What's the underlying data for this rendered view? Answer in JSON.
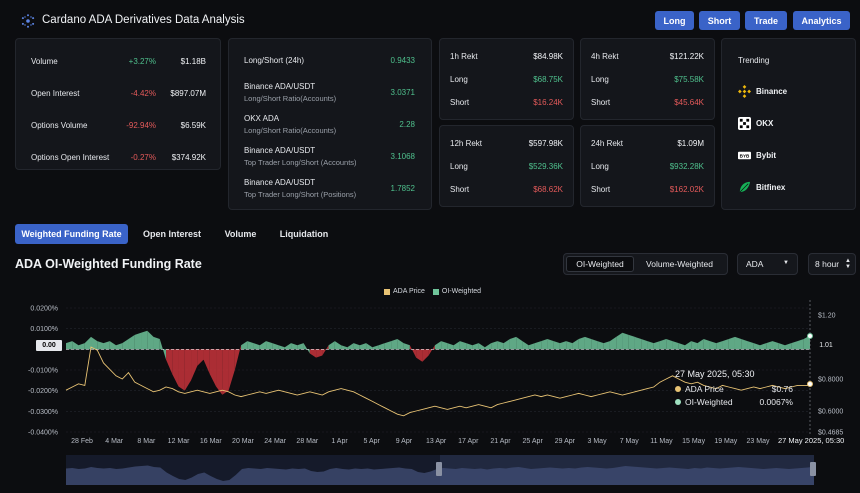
{
  "header": {
    "title": "Cardano ADA Derivatives Data Analysis",
    "buttons": [
      "Long",
      "Short",
      "Trade",
      "Analytics"
    ]
  },
  "market_panel": [
    {
      "label": "Volume",
      "change": "+3.27%",
      "value": "$1.18B",
      "dir": "pos"
    },
    {
      "label": "Open Interest",
      "change": "-4.42%",
      "value": "$897.07M",
      "dir": "neg"
    },
    {
      "label": "Options Volume",
      "change": "-92.94%",
      "value": "$6.59K",
      "dir": "neg"
    },
    {
      "label": "Options Open Interest",
      "change": "-0.27%",
      "value": "$374.92K",
      "dir": "neg"
    }
  ],
  "ratio_panel": [
    {
      "label": "Long/Short (24h)",
      "sub": "",
      "value": "0.9433"
    },
    {
      "label": "Binance ADA/USDT",
      "sub": "Long/Short Ratio(Accounts)",
      "value": "3.0371"
    },
    {
      "label": "OKX ADA",
      "sub": "Long/Short Ratio(Accounts)",
      "value": "2.28"
    },
    {
      "label": "Binance ADA/USDT",
      "sub": "Top Trader Long/Short (Accounts)",
      "value": "3.1068"
    },
    {
      "label": "Binance ADA/USDT",
      "sub": "Top Trader Long/Short (Positions)",
      "value": "1.7852"
    }
  ],
  "rekt_panels": [
    {
      "title": "1h Rekt",
      "total": "$84.98K",
      "long_label": "Long",
      "long": "$68.75K",
      "short_label": "Short",
      "short": "$16.24K"
    },
    {
      "title": "4h Rekt",
      "total": "$121.22K",
      "long_label": "Long",
      "long": "$75.58K",
      "short_label": "Short",
      "short": "$45.64K"
    },
    {
      "title": "12h Rekt",
      "total": "$597.98K",
      "long_label": "Long",
      "long": "$529.36K",
      "short_label": "Short",
      "short": "$68.62K"
    },
    {
      "title": "24h Rekt",
      "total": "$1.09M",
      "long_label": "Long",
      "long": "$932.28K",
      "short_label": "Short",
      "short": "$162.02K"
    }
  ],
  "trending": {
    "title": "Trending",
    "items": [
      {
        "name": "Binance",
        "icon": "binance-icon",
        "color": "#f0b90b"
      },
      {
        "name": "OKX",
        "icon": "okx-icon",
        "color": "#ffffff"
      },
      {
        "name": "Bybit",
        "icon": "bybit-icon",
        "color": "#ffffff"
      },
      {
        "name": "Bitfinex",
        "icon": "bitfinex-icon",
        "color": "#16b157"
      }
    ]
  },
  "tabs": [
    "Weighted Funding Rate",
    "Open Interest",
    "Volume",
    "Liquidation"
  ],
  "section_title": "ADA OI-Weighted Funding Rate",
  "weight_toggle": [
    "OI-Weighted",
    "Volume-Weighted"
  ],
  "coin_select": "ADA",
  "interval_select": "8 hour",
  "tooltip": {
    "date": "27 May 2025, 05:30",
    "rows": [
      {
        "label": "ADA Price",
        "value": "$0.76",
        "color": "#e8c374"
      },
      {
        "label": "OI-Weighted",
        "value": "0.0067%",
        "color": "#9fe0c0"
      }
    ]
  },
  "crosshair_label": "27 May 2025, 05:30",
  "colors": {
    "accent": "#3a63c8",
    "positive": "#4fc08d",
    "negative": "#e45a5a",
    "price": "#e8c374",
    "funding_pos": "#6fc49a",
    "funding_neg": "#c8343b"
  },
  "chart_data": {
    "type": "area",
    "legend": [
      "ADA Price",
      "OI-Weighted"
    ],
    "legend_position": "top-center",
    "x_ticks": [
      "28 Feb",
      "4 Mar",
      "8 Mar",
      "12 Mar",
      "16 Mar",
      "20 Mar",
      "24 Mar",
      "28 Mar",
      "1 Apr",
      "5 Apr",
      "9 Apr",
      "13 Apr",
      "17 Apr",
      "21 Apr",
      "25 Apr",
      "29 Apr",
      "3 May",
      "7 May",
      "11 May",
      "15 May",
      "19 May",
      "23 May"
    ],
    "y_left_ticks": [
      "0.0200%",
      "0.0100%",
      "0.00",
      "-0.0100%",
      "-0.0200%",
      "-0.0300%",
      "-0.0400%"
    ],
    "y_left_range": [
      -0.04,
      0.02
    ],
    "y_right_ticks": [
      "$1.20",
      "1.01",
      "$0.8000",
      "$0.6000",
      "$0.4685"
    ],
    "y_right_range": [
      0.4685,
      1.2
    ],
    "series": [
      {
        "name": "OI-Weighted",
        "unit": "%",
        "values": [
          0.003,
          0.004,
          0.002,
          0.003,
          0.006,
          0.004,
          0.003,
          0.004,
          0.002,
          0.003,
          0.005,
          0.007,
          0.008,
          0.009,
          0.006,
          0.005,
          -0.005,
          -0.012,
          -0.018,
          -0.02,
          -0.015,
          -0.008,
          -0.005,
          -0.012,
          -0.018,
          -0.022,
          -0.02,
          -0.01,
          0.002,
          0.004,
          0.003,
          0.002,
          0.004,
          0.003,
          0.002,
          0.001,
          0.003,
          0.002,
          0.003,
          -0.002,
          -0.004,
          -0.003,
          0.002,
          0.004,
          0.002,
          0.001,
          0.003,
          0.002,
          0.003,
          0.001,
          0.002,
          0.003,
          0.004,
          0.005,
          0.003,
          0.002,
          -0.004,
          -0.006,
          -0.003,
          0.002,
          0.004,
          0.003,
          0.002,
          0.004,
          0.003,
          0.002,
          0.003,
          0.001,
          0.003,
          0.004,
          0.003,
          0.005,
          0.006,
          0.004,
          0.002,
          0.003,
          0.004,
          0.005,
          0.004,
          0.003,
          0.004,
          0.003,
          0.005,
          0.006,
          0.005,
          0.004,
          0.003,
          0.004,
          0.006,
          0.008,
          0.007,
          0.006,
          0.005,
          0.004,
          0.003,
          0.004,
          0.005,
          0.004,
          0.003,
          0.002,
          0.004,
          0.003,
          0.005,
          0.004,
          0.003,
          0.004,
          0.005,
          0.006,
          0.005,
          0.004,
          0.003,
          0.002,
          0.003,
          0.004,
          0.003,
          0.002,
          0.003,
          0.004,
          0.005,
          0.0067
        ]
      },
      {
        "name": "ADA Price",
        "unit": "$",
        "values": [
          0.73,
          0.75,
          0.77,
          0.76,
          1.0,
          0.98,
          0.9,
          0.86,
          0.82,
          0.8,
          0.84,
          0.78,
          0.76,
          0.74,
          0.72,
          0.73,
          0.75,
          0.74,
          0.72,
          0.71,
          0.72,
          0.73,
          0.72,
          0.71,
          0.72,
          0.73,
          0.72,
          0.7,
          0.69,
          0.7,
          0.71,
          0.72,
          0.71,
          0.72,
          0.73,
          0.72,
          0.71,
          0.7,
          0.71,
          0.72,
          0.71,
          0.7,
          0.72,
          0.73,
          0.74,
          0.73,
          0.72,
          0.7,
          0.68,
          0.66,
          0.64,
          0.62,
          0.6,
          0.58,
          0.57,
          0.59,
          0.6,
          0.61,
          0.62,
          0.63,
          0.62,
          0.61,
          0.62,
          0.63,
          0.62,
          0.63,
          0.64,
          0.63,
          0.62,
          0.64,
          0.65,
          0.66,
          0.67,
          0.68,
          0.69,
          0.7,
          0.69,
          0.7,
          0.69,
          0.68,
          0.69,
          0.7,
          0.71,
          0.7,
          0.69,
          0.7,
          0.71,
          0.72,
          0.71,
          0.7,
          0.71,
          0.72,
          0.73,
          0.74,
          0.75,
          0.78,
          0.8,
          0.82,
          0.8,
          0.78,
          0.77,
          0.78,
          0.76,
          0.75,
          0.74,
          0.76,
          0.75,
          0.74,
          0.73,
          0.74,
          0.75,
          0.74,
          0.75,
          0.76,
          0.75,
          0.74,
          0.75,
          0.76,
          0.76,
          0.76
        ]
      }
    ]
  }
}
